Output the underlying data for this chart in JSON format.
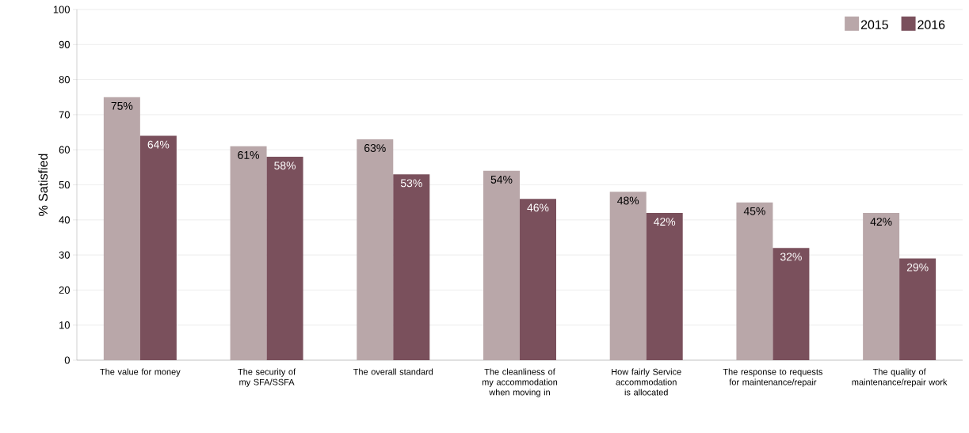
{
  "chart_data": {
    "type": "bar",
    "ylabel": "% Satisfied",
    "categories": [
      "The value for money",
      "The security of my SFA/SSFA",
      "The overall standard",
      "The cleanliness of my accommodation when moving in",
      "How fairly Service accommodation is allocated",
      "The response to requests for maintenance/repair",
      "The quality of maintenance/repair work"
    ],
    "series": [
      {
        "name": "2015",
        "color": "#b9a7a9",
        "values": [
          75,
          61,
          63,
          54,
          48,
          45,
          42
        ],
        "value_labels": [
          "75%",
          "61%",
          "63%",
          "54%",
          "48%",
          "45%",
          "42%"
        ]
      },
      {
        "name": "2016",
        "color": "#7a505c",
        "values": [
          64,
          58,
          53,
          46,
          42,
          32,
          29
        ],
        "value_labels": [
          "64%",
          "58%",
          "53%",
          "46%",
          "42%",
          "32%",
          "29%"
        ]
      }
    ],
    "ylim": [
      0,
      100
    ],
    "yticks": [
      0,
      10,
      20,
      30,
      40,
      50,
      60,
      70,
      80,
      90,
      100
    ],
    "grid": "y",
    "legend": "top right"
  }
}
